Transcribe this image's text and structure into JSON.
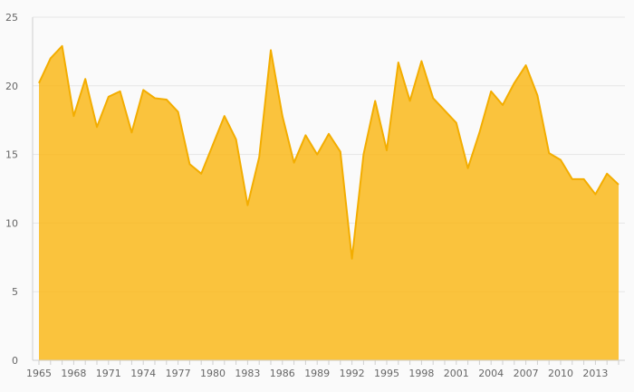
{
  "chart_data": {
    "type": "area",
    "title": "",
    "xlabel": "",
    "ylabel": "",
    "x": [
      1965,
      1966,
      1967,
      1968,
      1969,
      1970,
      1971,
      1972,
      1973,
      1974,
      1975,
      1976,
      1977,
      1978,
      1979,
      1980,
      1981,
      1982,
      1983,
      1984,
      1985,
      1986,
      1987,
      1988,
      1989,
      1990,
      1991,
      1992,
      1993,
      1994,
      1995,
      1996,
      1997,
      1998,
      1999,
      2000,
      2001,
      2002,
      2003,
      2004,
      2005,
      2006,
      2007,
      2008,
      2009,
      2010,
      2011,
      2012,
      2013,
      2014,
      2015
    ],
    "series": [
      {
        "values": [
          20.2,
          22.0,
          22.9,
          17.8,
          20.5,
          17.0,
          19.2,
          19.6,
          16.6,
          19.7,
          19.1,
          19.0,
          18.1,
          14.3,
          13.6,
          15.7,
          17.8,
          16.1,
          11.3,
          14.8,
          22.6,
          17.8,
          14.4,
          16.4,
          15.0,
          16.5,
          15.2,
          7.4,
          15.0,
          18.9,
          15.3,
          21.7,
          18.9,
          21.8,
          19.1,
          18.2,
          17.3,
          14.0,
          16.6,
          19.6,
          18.6,
          20.2,
          21.5,
          19.3,
          15.1,
          14.6,
          13.2,
          13.2,
          12.1,
          13.6,
          12.8
        ]
      }
    ],
    "xticks": [
      "1965",
      "1968",
      "1971",
      "1974",
      "1977",
      "1980",
      "1983",
      "1986",
      "1989",
      "1992",
      "1995",
      "1998",
      "2001",
      "2004",
      "2007",
      "2010",
      "2013"
    ],
    "yticks": [
      "0",
      "5",
      "10",
      "15",
      "20",
      "25"
    ],
    "xlim": [
      1965,
      2015
    ],
    "ylim": [
      0,
      25
    ],
    "grid": true,
    "legend": "none",
    "colors": {
      "fill": "#f9b81b",
      "line": "#f3ad00",
      "grid": "#e6e6e6",
      "axis": "#cfcfcf",
      "label": "#666666",
      "background": "#fafafa"
    }
  }
}
